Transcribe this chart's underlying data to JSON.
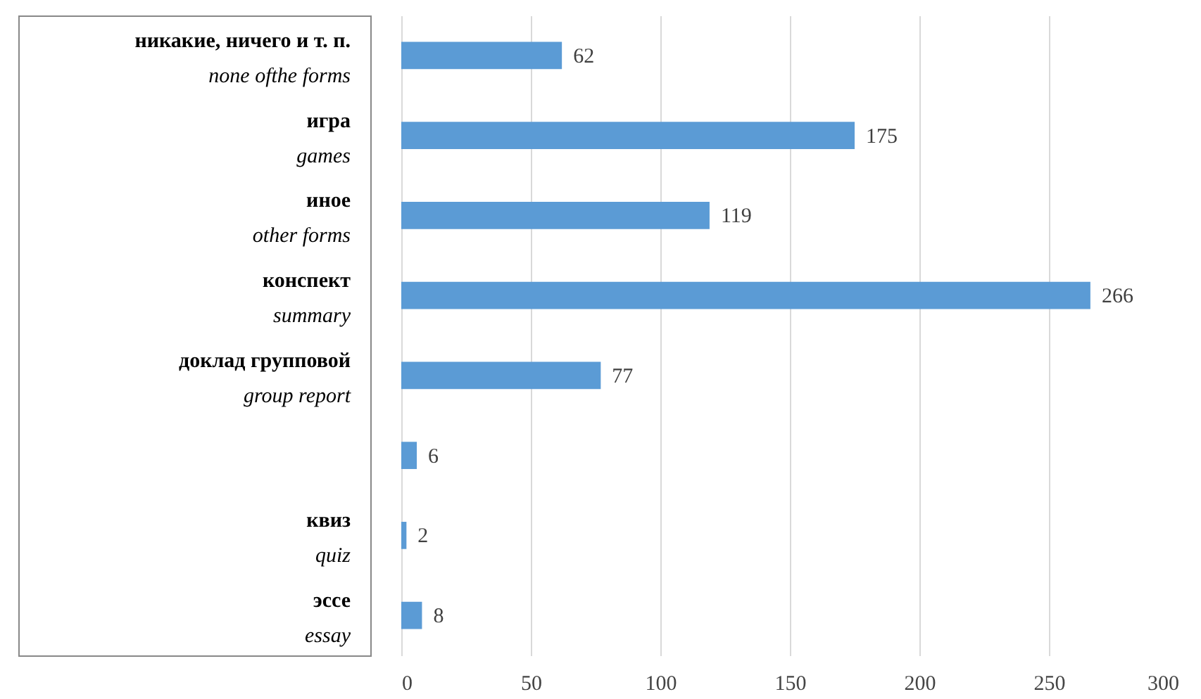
{
  "chart_data": {
    "type": "bar",
    "orientation": "horizontal",
    "categories": [
      "никакие, ничего и т. п.\nnone ofthe forms",
      "игра\ngames",
      "иное\nother forms",
      "конспект\nsummary",
      "доклад групповой\ngroup report",
      null,
      "квиз\nquiz",
      "эссе\nessay"
    ],
    "values": [
      62,
      175,
      119,
      266,
      77,
      6,
      2,
      8
    ],
    "color": "#5b9bd5",
    "xlim": [
      0,
      300
    ],
    "xticks": [
      0,
      50,
      100,
      150,
      200,
      250,
      300
    ],
    "grid": "x",
    "data_labels": true
  }
}
